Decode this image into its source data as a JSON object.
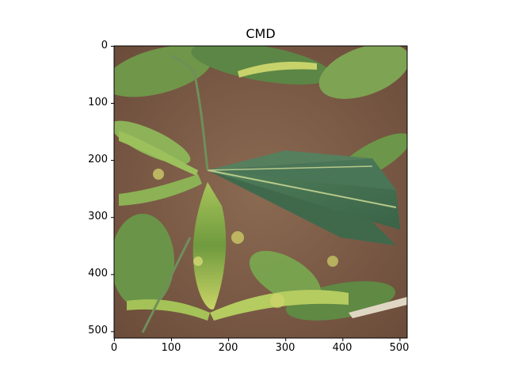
{
  "figure": {
    "title": "CMD",
    "image_description_icon": "cassava-plant-leaves-photo",
    "axes": {
      "x_ticks": [
        "0",
        "100",
        "200",
        "300",
        "400",
        "500"
      ],
      "y_ticks": [
        "0",
        "100",
        "200",
        "300",
        "400",
        "500"
      ],
      "x_range": [
        0,
        512
      ],
      "y_range": [
        0,
        512
      ],
      "y_inverted": true
    },
    "colors": {
      "soil": "#7a5a45",
      "leaf_dark": "#3f6b4e",
      "leaf_mid": "#5f8f3f",
      "leaf_light": "#9fc05a",
      "chlorosis": "#d6d96a",
      "spine": "#000000"
    }
  }
}
